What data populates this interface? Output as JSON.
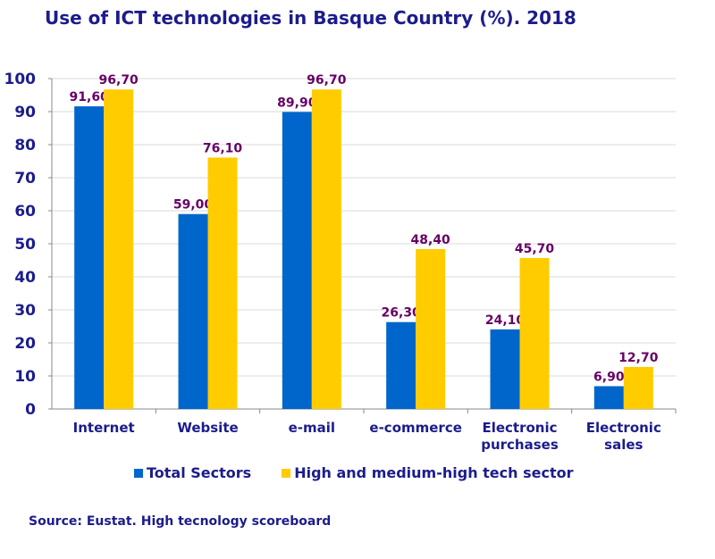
{
  "title": "Use of ICT technologies in Basque Country (%). 2018",
  "source": "Source: Eustat. High tecnology scoreboard",
  "colors": {
    "total": "#0066cc",
    "high_tech": "#ffcc00",
    "label": "#660066",
    "axis_text": "#1c1c8c",
    "grid": "#d9d9d9"
  },
  "chart_data": {
    "type": "bar",
    "title": "Use of ICT technologies in Basque Country (%). 2018",
    "categories": [
      [
        "Internet"
      ],
      [
        "Website"
      ],
      [
        "e-mail"
      ],
      [
        "e-commerce"
      ],
      [
        "Electronic",
        "purchases"
      ],
      [
        "Electronic",
        "sales"
      ]
    ],
    "series": [
      {
        "name": "Total Sectors",
        "color": "#0066cc",
        "values": [
          91.6,
          59.0,
          89.9,
          26.3,
          24.1,
          6.9
        ],
        "labels": [
          "91,60",
          "59,00",
          "89,90",
          "26,30",
          "24,10",
          "6,90"
        ]
      },
      {
        "name": "High and medium-high tech sector",
        "color": "#ffcc00",
        "values": [
          96.7,
          76.1,
          96.7,
          48.4,
          45.7,
          12.7
        ],
        "labels": [
          "96,70",
          "76,10",
          "96,70",
          "48,40",
          "45,70",
          "12,70"
        ]
      }
    ],
    "ylim": [
      0,
      100
    ],
    "yticks": [
      0,
      10,
      20,
      30,
      40,
      50,
      60,
      70,
      80,
      90,
      100
    ],
    "grid": true,
    "legend_position": "bottom"
  }
}
